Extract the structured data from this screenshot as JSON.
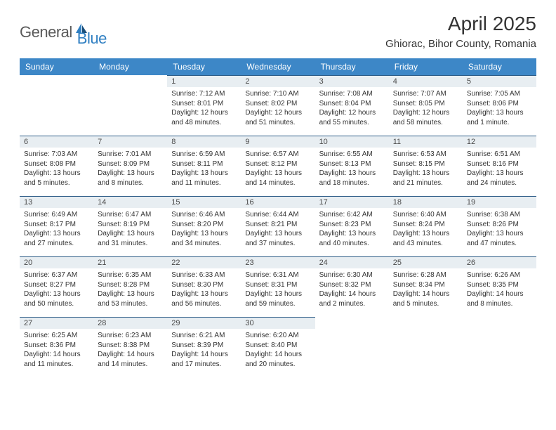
{
  "brand": {
    "general": "General",
    "blue": "Blue"
  },
  "title": "April 2025",
  "location": "Ghiorac, Bihor County, Romania",
  "colors": {
    "header_bg": "#3d87c7",
    "header_text": "#ffffff",
    "daynum_bg": "#e8eef2",
    "daynum_border": "#2e5d88",
    "body_text": "#333333",
    "logo_gray": "#5a5a5a",
    "logo_blue": "#2f7fc2"
  },
  "weekdays": [
    "Sunday",
    "Monday",
    "Tuesday",
    "Wednesday",
    "Thursday",
    "Friday",
    "Saturday"
  ],
  "weeks": [
    [
      null,
      null,
      {
        "n": "1",
        "sr": "Sunrise: 7:12 AM",
        "ss": "Sunset: 8:01 PM",
        "dl": "Daylight: 12 hours and 48 minutes."
      },
      {
        "n": "2",
        "sr": "Sunrise: 7:10 AM",
        "ss": "Sunset: 8:02 PM",
        "dl": "Daylight: 12 hours and 51 minutes."
      },
      {
        "n": "3",
        "sr": "Sunrise: 7:08 AM",
        "ss": "Sunset: 8:04 PM",
        "dl": "Daylight: 12 hours and 55 minutes."
      },
      {
        "n": "4",
        "sr": "Sunrise: 7:07 AM",
        "ss": "Sunset: 8:05 PM",
        "dl": "Daylight: 12 hours and 58 minutes."
      },
      {
        "n": "5",
        "sr": "Sunrise: 7:05 AM",
        "ss": "Sunset: 8:06 PM",
        "dl": "Daylight: 13 hours and 1 minute."
      }
    ],
    [
      {
        "n": "6",
        "sr": "Sunrise: 7:03 AM",
        "ss": "Sunset: 8:08 PM",
        "dl": "Daylight: 13 hours and 5 minutes."
      },
      {
        "n": "7",
        "sr": "Sunrise: 7:01 AM",
        "ss": "Sunset: 8:09 PM",
        "dl": "Daylight: 13 hours and 8 minutes."
      },
      {
        "n": "8",
        "sr": "Sunrise: 6:59 AM",
        "ss": "Sunset: 8:11 PM",
        "dl": "Daylight: 13 hours and 11 minutes."
      },
      {
        "n": "9",
        "sr": "Sunrise: 6:57 AM",
        "ss": "Sunset: 8:12 PM",
        "dl": "Daylight: 13 hours and 14 minutes."
      },
      {
        "n": "10",
        "sr": "Sunrise: 6:55 AM",
        "ss": "Sunset: 8:13 PM",
        "dl": "Daylight: 13 hours and 18 minutes."
      },
      {
        "n": "11",
        "sr": "Sunrise: 6:53 AM",
        "ss": "Sunset: 8:15 PM",
        "dl": "Daylight: 13 hours and 21 minutes."
      },
      {
        "n": "12",
        "sr": "Sunrise: 6:51 AM",
        "ss": "Sunset: 8:16 PM",
        "dl": "Daylight: 13 hours and 24 minutes."
      }
    ],
    [
      {
        "n": "13",
        "sr": "Sunrise: 6:49 AM",
        "ss": "Sunset: 8:17 PM",
        "dl": "Daylight: 13 hours and 27 minutes."
      },
      {
        "n": "14",
        "sr": "Sunrise: 6:47 AM",
        "ss": "Sunset: 8:19 PM",
        "dl": "Daylight: 13 hours and 31 minutes."
      },
      {
        "n": "15",
        "sr": "Sunrise: 6:46 AM",
        "ss": "Sunset: 8:20 PM",
        "dl": "Daylight: 13 hours and 34 minutes."
      },
      {
        "n": "16",
        "sr": "Sunrise: 6:44 AM",
        "ss": "Sunset: 8:21 PM",
        "dl": "Daylight: 13 hours and 37 minutes."
      },
      {
        "n": "17",
        "sr": "Sunrise: 6:42 AM",
        "ss": "Sunset: 8:23 PM",
        "dl": "Daylight: 13 hours and 40 minutes."
      },
      {
        "n": "18",
        "sr": "Sunrise: 6:40 AM",
        "ss": "Sunset: 8:24 PM",
        "dl": "Daylight: 13 hours and 43 minutes."
      },
      {
        "n": "19",
        "sr": "Sunrise: 6:38 AM",
        "ss": "Sunset: 8:26 PM",
        "dl": "Daylight: 13 hours and 47 minutes."
      }
    ],
    [
      {
        "n": "20",
        "sr": "Sunrise: 6:37 AM",
        "ss": "Sunset: 8:27 PM",
        "dl": "Daylight: 13 hours and 50 minutes."
      },
      {
        "n": "21",
        "sr": "Sunrise: 6:35 AM",
        "ss": "Sunset: 8:28 PM",
        "dl": "Daylight: 13 hours and 53 minutes."
      },
      {
        "n": "22",
        "sr": "Sunrise: 6:33 AM",
        "ss": "Sunset: 8:30 PM",
        "dl": "Daylight: 13 hours and 56 minutes."
      },
      {
        "n": "23",
        "sr": "Sunrise: 6:31 AM",
        "ss": "Sunset: 8:31 PM",
        "dl": "Daylight: 13 hours and 59 minutes."
      },
      {
        "n": "24",
        "sr": "Sunrise: 6:30 AM",
        "ss": "Sunset: 8:32 PM",
        "dl": "Daylight: 14 hours and 2 minutes."
      },
      {
        "n": "25",
        "sr": "Sunrise: 6:28 AM",
        "ss": "Sunset: 8:34 PM",
        "dl": "Daylight: 14 hours and 5 minutes."
      },
      {
        "n": "26",
        "sr": "Sunrise: 6:26 AM",
        "ss": "Sunset: 8:35 PM",
        "dl": "Daylight: 14 hours and 8 minutes."
      }
    ],
    [
      {
        "n": "27",
        "sr": "Sunrise: 6:25 AM",
        "ss": "Sunset: 8:36 PM",
        "dl": "Daylight: 14 hours and 11 minutes."
      },
      {
        "n": "28",
        "sr": "Sunrise: 6:23 AM",
        "ss": "Sunset: 8:38 PM",
        "dl": "Daylight: 14 hours and 14 minutes."
      },
      {
        "n": "29",
        "sr": "Sunrise: 6:21 AM",
        "ss": "Sunset: 8:39 PM",
        "dl": "Daylight: 14 hours and 17 minutes."
      },
      {
        "n": "30",
        "sr": "Sunrise: 6:20 AM",
        "ss": "Sunset: 8:40 PM",
        "dl": "Daylight: 14 hours and 20 minutes."
      },
      null,
      null,
      null
    ]
  ]
}
